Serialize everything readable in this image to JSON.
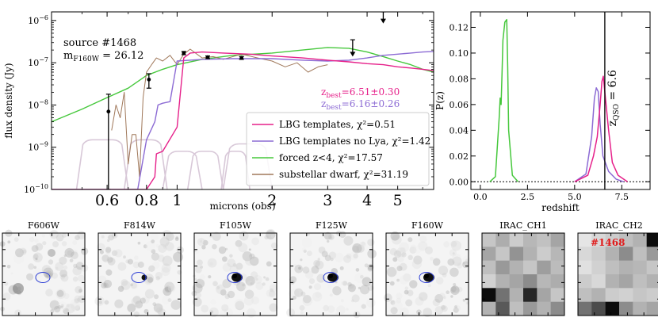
{
  "chart_data": [
    {
      "type": "line",
      "panel": "sed",
      "xlabel": "microns (obs)",
      "ylabel": "flux density (Jy)",
      "xscale": "log",
      "yscale": "log",
      "xlim": [
        0.4,
        6.5
      ],
      "ylim": [
        1e-10,
        1.6e-06
      ],
      "x_ticks": [
        {
          "value": 0.6,
          "label": "0.6"
        },
        {
          "value": 0.8,
          "label": "0.8"
        },
        {
          "value": 1,
          "label": "1"
        },
        {
          "value": 2,
          "label": "2"
        },
        {
          "value": 3,
          "label": "3"
        },
        {
          "value": 4,
          "label": "4"
        },
        {
          "value": 5,
          "label": "5"
        }
      ],
      "y_ticks": [
        {
          "value": 1e-10,
          "label": "10−10"
        },
        {
          "value": 1e-09,
          "label": "10−9"
        },
        {
          "value": 1e-08,
          "label": "10−8"
        },
        {
          "value": 1e-07,
          "label": "10−7"
        },
        {
          "value": 1e-06,
          "label": "10−6"
        }
      ],
      "annotations": {
        "source": "source #1468",
        "mag_label": "m",
        "mag_sub": "F160W",
        "mag_value": " = 26.12",
        "zbest1_prefix": "z",
        "zbest1_sub": "best",
        "zbest1_value": "=6.51±0.30",
        "zbest2_prefix": "z",
        "zbest2_sub": "best",
        "zbest2_value": "=6.16±0.26"
      },
      "legend_position": "lower-right",
      "series": [
        {
          "name": "LBG templates",
          "legend": "LBG templates, χ²=0.51",
          "color": "#e6208a",
          "x": [
            0.4,
            0.8,
            0.85,
            0.86,
            0.9,
            1.0,
            1.05,
            1.1,
            1.2,
            1.4,
            1.7,
            2.0,
            2.5,
            3.0,
            3.5,
            4.0,
            4.5,
            5.0,
            5.5,
            6.0,
            6.5
          ],
          "y": [
            1e-10,
            1e-10,
            2e-10,
            7e-10,
            8e-10,
            3e-09,
            1.3e-07,
            1.7e-07,
            1.8e-07,
            1.7e-07,
            1.6e-07,
            1.45e-07,
            1.3e-07,
            1.15e-07,
            1.05e-07,
            9.5e-08,
            9e-08,
            8e-08,
            7.5e-08,
            7e-08,
            6.5e-08
          ]
        },
        {
          "name": "LBG templates no Lya",
          "legend": "LBG templates no Lya, χ²=1.42",
          "color": "#8c6bd4",
          "x": [
            0.4,
            0.75,
            0.8,
            0.85,
            0.87,
            0.9,
            0.95,
            1.0,
            1.2,
            1.5,
            2.0,
            2.5,
            3.0,
            3.5,
            4.0,
            4.5,
            5.0,
            5.5,
            6.0,
            6.5
          ],
          "y": [
            1e-10,
            1e-10,
            1.5e-09,
            4e-09,
            1e-08,
            1.1e-08,
            1.2e-08,
            1.1e-07,
            1.2e-07,
            1.25e-07,
            1.25e-07,
            1.15e-07,
            1.1e-07,
            1.15e-07,
            1.3e-07,
            1.5e-07,
            1.6e-07,
            1.7e-07,
            1.8e-07,
            1.85e-07
          ]
        },
        {
          "name": "forced z<4",
          "legend": "forced z<4, χ²=17.57",
          "color": "#46c83c",
          "x": [
            0.4,
            0.5,
            0.6,
            0.7,
            0.8,
            0.9,
            1.0,
            1.2,
            1.5,
            2.0,
            2.5,
            3.0,
            3.5,
            4.0,
            4.5,
            5.0,
            5.5,
            6.0,
            6.5
          ],
          "y": [
            4e-09,
            8e-09,
            1.5e-08,
            2.5e-08,
            5e-08,
            7e-08,
            9e-08,
            1.2e-07,
            1.5e-07,
            1.7e-07,
            2e-07,
            2.3e-07,
            2.2e-07,
            1.8e-07,
            1.4e-07,
            1.1e-07,
            9e-08,
            7e-08,
            6e-08
          ]
        },
        {
          "name": "substellar dwarf",
          "legend": "substellar dwarf, χ²=31.19",
          "color": "#a0785a",
          "x": [
            0.62,
            0.64,
            0.66,
            0.68,
            0.7,
            0.72,
            0.74,
            0.76,
            0.78,
            0.8,
            0.83,
            0.86,
            0.9,
            0.95,
            1.0,
            1.05,
            1.1,
            1.2,
            1.3,
            1.4,
            1.6,
            1.8,
            2.0,
            2.2,
            2.4,
            2.6,
            2.8,
            3.0
          ],
          "y": [
            2.5e-09,
            1e-08,
            5e-09,
            2e-08,
            4e-10,
            2e-09,
            2e-09,
            2e-10,
            1.5e-08,
            6e-08,
            9e-08,
            1.3e-07,
            1.1e-07,
            1.5e-07,
            9e-08,
            1.6e-07,
            2.1e-07,
            1.3e-07,
            1.4e-07,
            1.2e-07,
            1.6e-07,
            1.3e-07,
            1.1e-07,
            8e-08,
            1e-07,
            6e-08,
            8e-08,
            9e-08
          ]
        }
      ],
      "filter_curves": [
        {
          "from": 0.48,
          "to": 0.7,
          "level": 1.5e-09
        },
        {
          "from": 0.68,
          "to": 0.93,
          "level": 1.5e-09
        },
        {
          "from": 0.9,
          "to": 1.2,
          "level": 8e-10
        },
        {
          "from": 1.08,
          "to": 1.4,
          "level": 8e-10
        },
        {
          "from": 1.38,
          "to": 1.7,
          "level": 8e-10
        },
        {
          "from": 1.4,
          "to": 2.0,
          "level": 1.2e-09
        }
      ],
      "photometry_points": [
        {
          "x": 0.606,
          "y": 7e-09,
          "lower": 1e-10,
          "upper": 1.8e-08
        },
        {
          "x": 0.814,
          "y": 4e-08,
          "lower": 2.5e-08,
          "upper": 5.5e-08
        },
        {
          "x": 1.05,
          "y": 1.7e-07,
          "lower": 1.55e-07,
          "upper": 1.85e-07
        },
        {
          "x": 1.25,
          "y": 1.35e-07,
          "lower": 1.25e-07,
          "upper": 1.45e-07
        },
        {
          "x": 1.6,
          "y": 1.3e-07,
          "lower": 1.2e-07,
          "upper": 1.4e-07
        }
      ],
      "upper_limits": [
        {
          "x": 3.6,
          "y": 3.5e-07,
          "to": 1.4e-07
        },
        {
          "x": 4.5,
          "y": 1.6e-06,
          "to": 8.5e-07
        }
      ]
    },
    {
      "type": "line",
      "panel": "pz",
      "xlabel": "redshift",
      "ylabel": "P(z)",
      "xlim": [
        -0.5,
        9.0
      ],
      "ylim": [
        -0.006,
        0.132
      ],
      "x_ticks": [
        0.0,
        2.5,
        5.0,
        7.5
      ],
      "x_tick_labels": [
        "0.0",
        "2.5",
        "5.0",
        "7.5"
      ],
      "y_ticks": [
        0.0,
        0.02,
        0.04,
        0.06,
        0.08,
        0.1,
        0.12
      ],
      "y_tick_labels": [
        "0.00",
        "0.02",
        "0.04",
        "0.06",
        "0.08",
        "0.10",
        "0.12"
      ],
      "qso_line": {
        "z": 6.6,
        "label": "z",
        "label_sub": "QSO",
        "label_value": " = 6.6"
      },
      "series": [
        {
          "name": "forced z<4",
          "color": "#46c83c",
          "x": [
            0.5,
            0.8,
            1.0,
            1.05,
            1.1,
            1.15,
            1.2,
            1.3,
            1.4,
            1.45,
            1.5,
            1.7,
            2.0
          ],
          "y": [
            0.0,
            0.004,
            0.05,
            0.065,
            0.06,
            0.085,
            0.11,
            0.124,
            0.126,
            0.09,
            0.04,
            0.005,
            0.0
          ]
        },
        {
          "name": "LBG templates no Lya",
          "color": "#8c6bd4",
          "x": [
            5.0,
            5.6,
            5.9,
            6.05,
            6.15,
            6.25,
            6.35,
            6.5,
            6.8,
            7.2,
            7.6
          ],
          "y": [
            0.0,
            0.006,
            0.035,
            0.065,
            0.073,
            0.07,
            0.045,
            0.02,
            0.008,
            0.002,
            0.0
          ]
        },
        {
          "name": "LBG templates",
          "color": "#e6208a",
          "x": [
            5.0,
            5.7,
            6.0,
            6.2,
            6.35,
            6.45,
            6.52,
            6.6,
            6.8,
            7.0,
            7.3,
            7.8
          ],
          "y": [
            0.0,
            0.005,
            0.02,
            0.035,
            0.06,
            0.078,
            0.082,
            0.07,
            0.04,
            0.015,
            0.005,
            0.0
          ]
        }
      ]
    }
  ],
  "thumbnails": [
    {
      "label": "F606W",
      "kind": "hst",
      "source": "faint"
    },
    {
      "label": "F814W",
      "kind": "hst",
      "source": "small"
    },
    {
      "label": "F105W",
      "kind": "hst",
      "source": "bright"
    },
    {
      "label": "F125W",
      "kind": "hst",
      "source": "bright"
    },
    {
      "label": "F160W",
      "kind": "hst",
      "source": "bright"
    },
    {
      "label": "IRAC_CH1",
      "kind": "irac",
      "source": "none"
    },
    {
      "label": "IRAC_CH2",
      "kind": "irac",
      "source": "none",
      "tag": "#1468"
    }
  ]
}
